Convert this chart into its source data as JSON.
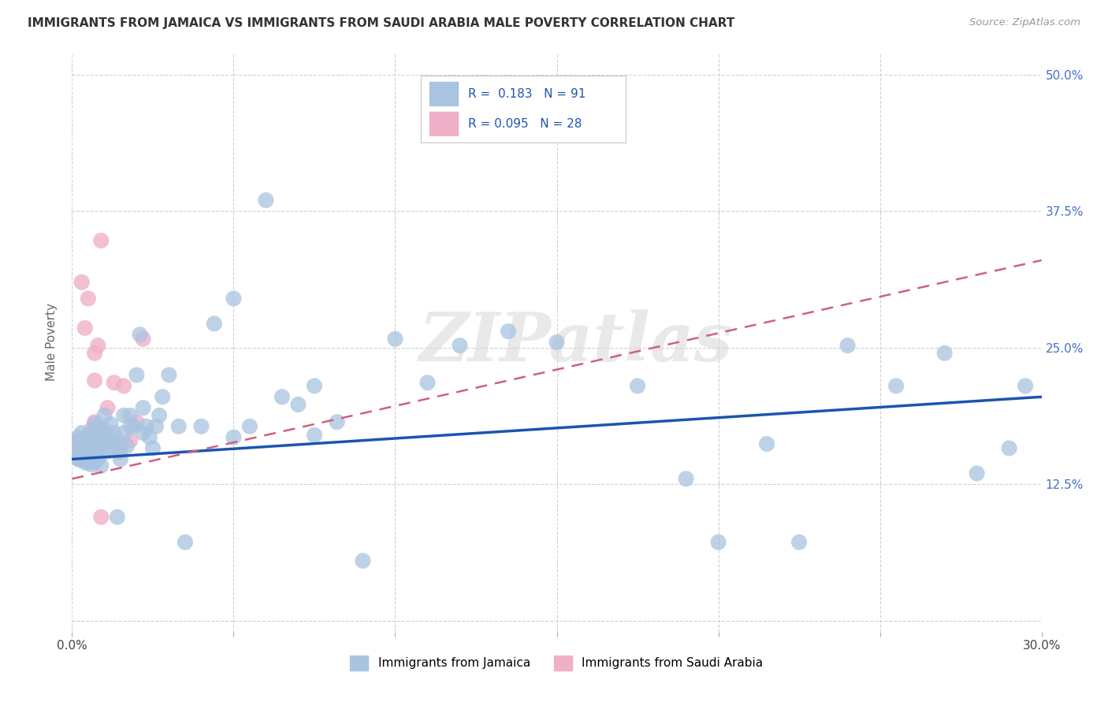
{
  "title": "IMMIGRANTS FROM JAMAICA VS IMMIGRANTS FROM SAUDI ARABIA MALE POVERTY CORRELATION CHART",
  "source": "Source: ZipAtlas.com",
  "ylabel": "Male Poverty",
  "x_min": 0.0,
  "x_max": 0.3,
  "y_min": -0.01,
  "y_max": 0.52,
  "x_ticks": [
    0.0,
    0.05,
    0.1,
    0.15,
    0.2,
    0.25,
    0.3
  ],
  "y_ticks": [
    0.0,
    0.125,
    0.25,
    0.375,
    0.5
  ],
  "color_jamaica": "#a8c4e0",
  "color_saudi": "#f0b0c8",
  "color_line_jamaica": "#1a55b0",
  "color_line_saudi": "#d06080",
  "background_color": "#ffffff",
  "grid_color": "#d0d0d0",
  "watermark_text": "ZIPatlas",
  "jamaica_x": [
    0.001,
    0.001,
    0.002,
    0.002,
    0.003,
    0.003,
    0.003,
    0.004,
    0.004,
    0.004,
    0.004,
    0.005,
    0.005,
    0.005,
    0.005,
    0.005,
    0.006,
    0.006,
    0.006,
    0.006,
    0.007,
    0.007,
    0.007,
    0.007,
    0.008,
    0.008,
    0.008,
    0.009,
    0.009,
    0.009,
    0.01,
    0.01,
    0.01,
    0.011,
    0.011,
    0.012,
    0.012,
    0.013,
    0.013,
    0.014,
    0.014,
    0.015,
    0.015,
    0.016,
    0.016,
    0.017,
    0.018,
    0.018,
    0.019,
    0.02,
    0.021,
    0.022,
    0.022,
    0.023,
    0.024,
    0.025,
    0.026,
    0.027,
    0.028,
    0.03,
    0.033,
    0.035,
    0.04,
    0.044,
    0.05,
    0.055,
    0.06,
    0.065,
    0.07,
    0.075,
    0.082,
    0.09,
    0.1,
    0.11,
    0.12,
    0.135,
    0.15,
    0.16,
    0.175,
    0.19,
    0.2,
    0.215,
    0.225,
    0.24,
    0.255,
    0.27,
    0.28,
    0.29,
    0.295,
    0.05,
    0.075
  ],
  "jamaica_y": [
    0.155,
    0.162,
    0.148,
    0.168,
    0.155,
    0.148,
    0.172,
    0.145,
    0.158,
    0.148,
    0.162,
    0.15,
    0.145,
    0.16,
    0.155,
    0.17,
    0.143,
    0.162,
    0.15,
    0.168,
    0.155,
    0.145,
    0.168,
    0.18,
    0.148,
    0.162,
    0.178,
    0.153,
    0.162,
    0.142,
    0.16,
    0.175,
    0.188,
    0.17,
    0.155,
    0.165,
    0.18,
    0.16,
    0.172,
    0.095,
    0.155,
    0.148,
    0.162,
    0.172,
    0.188,
    0.16,
    0.178,
    0.188,
    0.178,
    0.225,
    0.262,
    0.172,
    0.195,
    0.178,
    0.168,
    0.158,
    0.178,
    0.188,
    0.205,
    0.225,
    0.178,
    0.072,
    0.178,
    0.272,
    0.168,
    0.178,
    0.385,
    0.205,
    0.198,
    0.215,
    0.182,
    0.055,
    0.258,
    0.218,
    0.252,
    0.265,
    0.255,
    0.492,
    0.215,
    0.13,
    0.072,
    0.162,
    0.072,
    0.252,
    0.215,
    0.245,
    0.135,
    0.158,
    0.215,
    0.295,
    0.17
  ],
  "saudi_x": [
    0.001,
    0.001,
    0.002,
    0.002,
    0.002,
    0.003,
    0.003,
    0.004,
    0.004,
    0.005,
    0.005,
    0.006,
    0.006,
    0.007,
    0.007,
    0.008,
    0.009,
    0.009,
    0.01,
    0.011,
    0.012,
    0.013,
    0.014,
    0.015,
    0.016,
    0.018,
    0.02,
    0.022
  ],
  "saudi_y": [
    0.165,
    0.155,
    0.158,
    0.148,
    0.165,
    0.155,
    0.148,
    0.162,
    0.165,
    0.16,
    0.148,
    0.175,
    0.155,
    0.22,
    0.182,
    0.16,
    0.095,
    0.175,
    0.172,
    0.195,
    0.165,
    0.218,
    0.165,
    0.155,
    0.215,
    0.165,
    0.182,
    0.258
  ],
  "saudi_outliers_x": [
    0.003,
    0.004,
    0.005,
    0.007,
    0.008,
    0.009
  ],
  "saudi_outliers_y": [
    0.31,
    0.268,
    0.295,
    0.245,
    0.252,
    0.348
  ],
  "jamaica_line_x0": 0.0,
  "jamaica_line_y0": 0.148,
  "jamaica_line_x1": 0.3,
  "jamaica_line_y1": 0.205,
  "saudi_line_x0": 0.0,
  "saudi_line_y0": 0.13,
  "saudi_line_x1": 0.3,
  "saudi_line_y1": 0.33
}
